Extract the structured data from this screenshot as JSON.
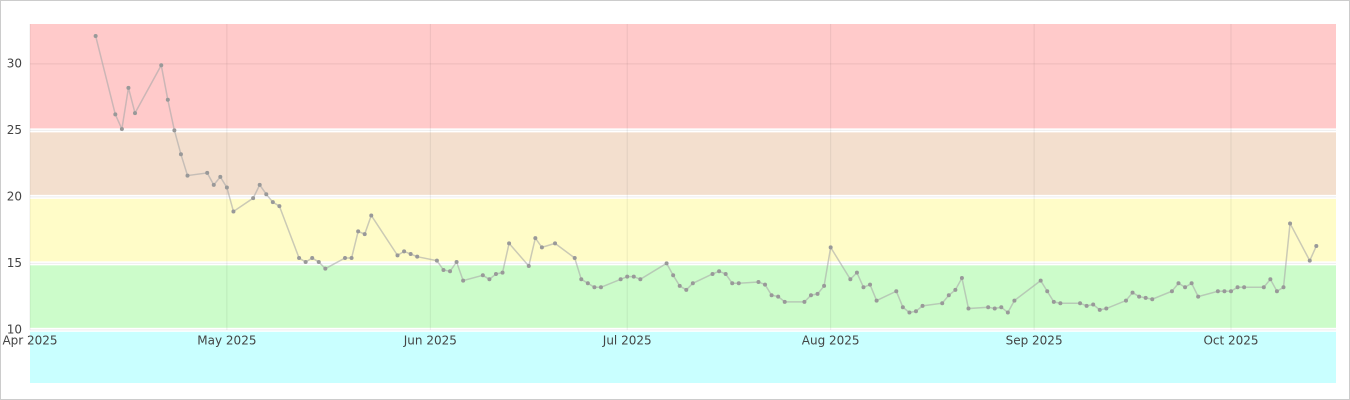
{
  "chart_data": {
    "type": "line",
    "color": "#a8a8a8",
    "point_color": "#999999",
    "grid": true,
    "ylim": [
      6,
      33
    ],
    "yticks": [
      10,
      15,
      20,
      25,
      30
    ],
    "xlim": [
      "2025-04-01",
      "2025-10-17"
    ],
    "xticks": [
      {
        "value": "2025-04-01",
        "label": "Apr 2025"
      },
      {
        "value": "2025-05-01",
        "label": "May 2025"
      },
      {
        "value": "2025-06-01",
        "label": "Jun 2025"
      },
      {
        "value": "2025-07-01",
        "label": "Jul 2025"
      },
      {
        "value": "2025-08-01",
        "label": "Aug 2025"
      },
      {
        "value": "2025-09-01",
        "label": "Sep 2025"
      },
      {
        "value": "2025-10-01",
        "label": "Oct 2025"
      }
    ],
    "bands": [
      {
        "from": 25,
        "to": 33,
        "color": "#ffcaca"
      },
      {
        "from": 20,
        "to": 25,
        "color": "#f3dfce"
      },
      {
        "from": 15,
        "to": 20,
        "color": "#fffcc8"
      },
      {
        "from": 10,
        "to": 15,
        "color": "#ccfcca"
      },
      {
        "from": 6,
        "to": 10,
        "color": "#c9ffff"
      }
    ],
    "x": [
      "2025-04-11",
      "2025-04-14",
      "2025-04-15",
      "2025-04-16",
      "2025-04-17",
      "2025-04-21",
      "2025-04-22",
      "2025-04-23",
      "2025-04-24",
      "2025-04-25",
      "2025-04-28",
      "2025-04-29",
      "2025-04-30",
      "2025-05-01",
      "2025-05-02",
      "2025-05-05",
      "2025-05-06",
      "2025-05-07",
      "2025-05-08",
      "2025-05-09",
      "2025-05-12",
      "2025-05-13",
      "2025-05-14",
      "2025-05-15",
      "2025-05-16",
      "2025-05-19",
      "2025-05-20",
      "2025-05-21",
      "2025-05-22",
      "2025-05-23",
      "2025-05-27",
      "2025-05-28",
      "2025-05-29",
      "2025-05-30",
      "2025-06-02",
      "2025-06-03",
      "2025-06-04",
      "2025-06-05",
      "2025-06-06",
      "2025-06-09",
      "2025-06-10",
      "2025-06-11",
      "2025-06-12",
      "2025-06-13",
      "2025-06-16",
      "2025-06-17",
      "2025-06-18",
      "2025-06-20",
      "2025-06-23",
      "2025-06-24",
      "2025-06-25",
      "2025-06-26",
      "2025-06-27",
      "2025-06-30",
      "2025-07-01",
      "2025-07-02",
      "2025-07-03",
      "2025-07-07",
      "2025-07-08",
      "2025-07-09",
      "2025-07-10",
      "2025-07-11",
      "2025-07-14",
      "2025-07-15",
      "2025-07-16",
      "2025-07-17",
      "2025-07-18",
      "2025-07-21",
      "2025-07-22",
      "2025-07-23",
      "2025-07-24",
      "2025-07-25",
      "2025-07-28",
      "2025-07-29",
      "2025-07-30",
      "2025-07-31",
      "2025-08-01",
      "2025-08-04",
      "2025-08-05",
      "2025-08-06",
      "2025-08-07",
      "2025-08-08",
      "2025-08-11",
      "2025-08-12",
      "2025-08-13",
      "2025-08-14",
      "2025-08-15",
      "2025-08-18",
      "2025-08-19",
      "2025-08-20",
      "2025-08-21",
      "2025-08-22",
      "2025-08-25",
      "2025-08-26",
      "2025-08-27",
      "2025-08-28",
      "2025-08-29",
      "2025-09-02",
      "2025-09-03",
      "2025-09-04",
      "2025-09-05",
      "2025-09-08",
      "2025-09-09",
      "2025-09-10",
      "2025-09-11",
      "2025-09-12",
      "2025-09-15",
      "2025-09-16",
      "2025-09-17",
      "2025-09-18",
      "2025-09-19",
      "2025-09-22",
      "2025-09-23",
      "2025-09-24",
      "2025-09-25",
      "2025-09-26",
      "2025-09-29",
      "2025-09-30",
      "2025-10-01",
      "2025-10-02",
      "2025-10-03",
      "2025-10-06",
      "2025-10-07",
      "2025-10-08",
      "2025-10-09",
      "2025-10-10",
      "2025-10-13",
      "2025-10-14"
    ],
    "values": [
      32.1,
      26.2,
      25.1,
      28.2,
      26.3,
      29.9,
      27.3,
      25.0,
      23.2,
      21.6,
      21.8,
      20.9,
      21.5,
      20.7,
      18.9,
      19.9,
      20.9,
      20.2,
      19.6,
      19.3,
      15.4,
      15.1,
      15.4,
      15.1,
      14.6,
      15.4,
      15.4,
      17.4,
      17.2,
      18.6,
      15.6,
      15.9,
      15.7,
      15.5,
      15.2,
      14.5,
      14.4,
      15.1,
      13.7,
      14.1,
      13.8,
      14.2,
      14.3,
      16.5,
      14.8,
      16.9,
      16.2,
      16.5,
      15.4,
      13.8,
      13.5,
      13.2,
      13.2,
      13.8,
      14.0,
      14.0,
      13.8,
      15.0,
      14.1,
      13.3,
      13.0,
      13.5,
      14.2,
      14.4,
      14.2,
      13.5,
      13.5,
      13.6,
      13.4,
      12.6,
      12.5,
      12.1,
      12.1,
      12.6,
      12.7,
      13.3,
      16.2,
      13.8,
      14.3,
      13.2,
      13.4,
      12.2,
      12.9,
      11.7,
      11.3,
      11.4,
      11.8,
      12.0,
      12.6,
      13.0,
      13.9,
      11.6,
      11.7,
      11.6,
      11.7,
      11.3,
      12.2,
      13.7,
      12.9,
      12.1,
      12.0,
      12.0,
      11.8,
      11.9,
      11.5,
      11.6,
      12.2,
      12.8,
      12.5,
      12.4,
      12.3,
      12.9,
      13.5,
      13.2,
      13.5,
      12.5,
      12.9,
      12.9,
      12.9,
      13.2,
      13.2,
      13.2,
      13.8,
      12.9,
      13.2,
      18.0,
      15.2,
      16.3
    ]
  }
}
